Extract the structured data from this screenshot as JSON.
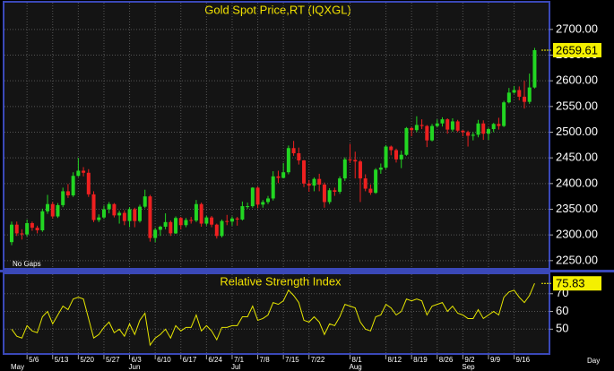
{
  "chart_data": [
    {
      "type": "candlestick",
      "title": "Gold Spot Price,RT (IQXGL)",
      "note": "No Gaps",
      "x_label": "Day",
      "categories": [
        null,
        null,
        null,
        "5/6",
        null,
        null,
        null,
        null,
        "5/13",
        null,
        null,
        null,
        null,
        "5/20",
        null,
        null,
        null,
        null,
        "5/27",
        null,
        null,
        null,
        null,
        "6/3",
        null,
        null,
        null,
        null,
        "6/10",
        null,
        null,
        null,
        null,
        "6/17",
        null,
        null,
        null,
        null,
        "6/24",
        null,
        null,
        null,
        null,
        "7/1",
        null,
        null,
        null,
        null,
        "7/8",
        null,
        null,
        null,
        null,
        "7/15",
        null,
        null,
        null,
        null,
        "7/22",
        null,
        null,
        null,
        null,
        null,
        null,
        null,
        "8/1",
        null,
        null,
        null,
        null,
        null,
        null,
        "8/12",
        null,
        null,
        null,
        null,
        "8/19",
        null,
        null,
        null,
        null,
        "8/26",
        null,
        null,
        null,
        null,
        "9/2",
        null,
        null,
        null,
        null,
        "9/9",
        null,
        null,
        null,
        null,
        "9/16",
        null,
        null,
        null,
        null
      ],
      "months": [
        "May",
        null,
        null,
        null,
        null,
        null,
        null,
        null,
        null,
        null,
        null,
        null,
        null,
        null,
        null,
        null,
        null,
        null,
        null,
        null,
        null,
        null,
        null,
        "Jun",
        null,
        null,
        null,
        null,
        null,
        null,
        null,
        null,
        null,
        null,
        null,
        null,
        null,
        null,
        null,
        null,
        null,
        null,
        null,
        "Jul",
        null,
        null,
        null,
        null,
        null,
        null,
        null,
        null,
        null,
        null,
        null,
        null,
        null,
        null,
        null,
        null,
        null,
        null,
        null,
        null,
        null,
        null,
        "Aug",
        null,
        null,
        null,
        null,
        null,
        null,
        null,
        null,
        null,
        null,
        null,
        null,
        null,
        null,
        null,
        null,
        null,
        null,
        null,
        null,
        null,
        "Sep",
        null,
        null,
        null,
        null,
        null,
        null,
        null,
        null,
        null,
        null,
        null,
        null,
        null,
        null
      ],
      "open": [
        2286,
        2320,
        2303,
        2301,
        2323,
        2314,
        2309,
        2346,
        2360,
        2336,
        2358,
        2385,
        2377,
        2415,
        2425,
        2421,
        2379,
        2329,
        2334,
        2350,
        2360,
        2338,
        2343,
        2327,
        2350,
        2327,
        2355,
        2375,
        2294,
        2310,
        2316,
        2325,
        2303,
        2333,
        2319,
        2329,
        2328,
        2360,
        2322,
        2334,
        2320,
        2298,
        2327,
        2326,
        2332,
        2330,
        2356,
        2356,
        2392,
        2359,
        2364,
        2371,
        2414,
        2411,
        2422,
        2469,
        2459,
        2445,
        2400,
        2396,
        2409,
        2398,
        2364,
        2387,
        2384,
        2410,
        2447,
        2446,
        2443,
        2410,
        2390,
        2382,
        2427,
        2431,
        2472,
        2465,
        2447,
        2456,
        2508,
        2504,
        2514,
        2512,
        2484,
        2512,
        2517,
        2525,
        2505,
        2521,
        2503,
        2500,
        2493,
        2495,
        2517,
        2497,
        2506,
        2516,
        2512,
        2558,
        2577,
        2582,
        2569,
        2559,
        2587
      ],
      "high": [
        2326,
        2326,
        2311,
        2330,
        2326,
        2318,
        2351,
        2378,
        2364,
        2362,
        2392,
        2399,
        2422,
        2450,
        2432,
        2428,
        2385,
        2340,
        2357,
        2364,
        2362,
        2347,
        2348,
        2354,
        2353,
        2359,
        2388,
        2378,
        2314,
        2318,
        2342,
        2328,
        2336,
        2335,
        2333,
        2335,
        2368,
        2363,
        2337,
        2337,
        2322,
        2330,
        2339,
        2336,
        2335,
        2365,
        2363,
        2393,
        2394,
        2368,
        2376,
        2424,
        2425,
        2440,
        2474,
        2483,
        2470,
        2446,
        2407,
        2412,
        2419,
        2402,
        2391,
        2392,
        2414,
        2451,
        2477,
        2462,
        2446,
        2418,
        2398,
        2430,
        2439,
        2475,
        2474,
        2468,
        2464,
        2510,
        2510,
        2531,
        2525,
        2514,
        2516,
        2525,
        2529,
        2527,
        2527,
        2524,
        2504,
        2503,
        2500,
        2524,
        2523,
        2509,
        2518,
        2528,
        2561,
        2586,
        2590,
        2589,
        2600,
        2614,
        2664
      ],
      "low": [
        2280,
        2298,
        2291,
        2297,
        2308,
        2303,
        2306,
        2341,
        2332,
        2333,
        2354,
        2372,
        2374,
        2413,
        2414,
        2374,
        2325,
        2325,
        2331,
        2342,
        2334,
        2322,
        2319,
        2315,
        2315,
        2324,
        2352,
        2287,
        2286,
        2298,
        2311,
        2298,
        2302,
        2311,
        2315,
        2322,
        2325,
        2316,
        2318,
        2315,
        2293,
        2295,
        2319,
        2318,
        2318,
        2328,
        2351,
        2353,
        2352,
        2353,
        2360,
        2367,
        2401,
        2410,
        2418,
        2454,
        2437,
        2393,
        2384,
        2385,
        2385,
        2353,
        2360,
        2376,
        2380,
        2405,
        2440,
        2410,
        2364,
        2385,
        2378,
        2380,
        2419,
        2428,
        2455,
        2441,
        2430,
        2454,
        2492,
        2500,
        2506,
        2471,
        2482,
        2509,
        2511,
        2497,
        2501,
        2500,
        2492,
        2472,
        2484,
        2490,
        2485,
        2485,
        2500,
        2505,
        2510,
        2556,
        2575,
        2562,
        2546,
        2555,
        2585
      ],
      "close": [
        2320,
        2303,
        2301,
        2323,
        2314,
        2309,
        2346,
        2360,
        2336,
        2358,
        2385,
        2377,
        2415,
        2425,
        2421,
        2379,
        2329,
        2334,
        2350,
        2360,
        2338,
        2343,
        2327,
        2350,
        2327,
        2355,
        2375,
        2294,
        2310,
        2316,
        2325,
        2303,
        2333,
        2319,
        2329,
        2328,
        2360,
        2322,
        2334,
        2320,
        2298,
        2327,
        2326,
        2332,
        2330,
        2356,
        2356,
        2392,
        2359,
        2364,
        2371,
        2414,
        2411,
        2422,
        2469,
        2459,
        2445,
        2400,
        2396,
        2409,
        2398,
        2364,
        2387,
        2384,
        2410,
        2447,
        2446,
        2443,
        2410,
        2390,
        2382,
        2427,
        2431,
        2472,
        2465,
        2447,
        2456,
        2508,
        2504,
        2514,
        2512,
        2484,
        2512,
        2517,
        2525,
        2505,
        2521,
        2503,
        2500,
        2493,
        2495,
        2517,
        2497,
        2506,
        2516,
        2512,
        2558,
        2577,
        2582,
        2569,
        2559,
        2587,
        2659.61
      ],
      "up_color": "#22d622",
      "down_color": "#ee2020",
      "ylim": [
        2234,
        2752
      ],
      "yticks": [
        {
          "value": 2250,
          "label": "2250.00"
        },
        {
          "value": 2300,
          "label": "2300.00"
        },
        {
          "value": 2350,
          "label": "2350.00"
        },
        {
          "value": 2400,
          "label": "2400.00"
        },
        {
          "value": 2450,
          "label": "2450.00"
        },
        {
          "value": 2500,
          "label": "2500.00"
        },
        {
          "value": 2550,
          "label": "2550.00"
        },
        {
          "value": 2600,
          "label": "2600.00"
        },
        {
          "value": 2650,
          "label": "2650.00"
        },
        {
          "value": 2700,
          "label": "2700.00"
        }
      ],
      "grid": true
    },
    {
      "type": "line",
      "title": "Relative Strength Index",
      "values": [
        50,
        46,
        45,
        52,
        49,
        48,
        57,
        60,
        53,
        58,
        63,
        61,
        67,
        68,
        67,
        56,
        45,
        47,
        51,
        54,
        48,
        50,
        46,
        53,
        47,
        55,
        59,
        41,
        45,
        47,
        50,
        45,
        52,
        49,
        51,
        51,
        58,
        49,
        52,
        49,
        44,
        51,
        51,
        52,
        52,
        57,
        57,
        63,
        55,
        56,
        58,
        65,
        64,
        66,
        72,
        69,
        65,
        55,
        54,
        57,
        54,
        47,
        53,
        52,
        57,
        64,
        63,
        62,
        54,
        50,
        49,
        57,
        58,
        64,
        62,
        58,
        60,
        67,
        66,
        67,
        66,
        58,
        63,
        64,
        65,
        60,
        63,
        59,
        58,
        56,
        56,
        61,
        56,
        58,
        60,
        58,
        68,
        71,
        72,
        68,
        65,
        69,
        75.83
      ],
      "color": "#e6e600",
      "ylim": [
        36,
        81
      ],
      "yticks": [
        50,
        60,
        70
      ],
      "grid": true
    }
  ]
}
